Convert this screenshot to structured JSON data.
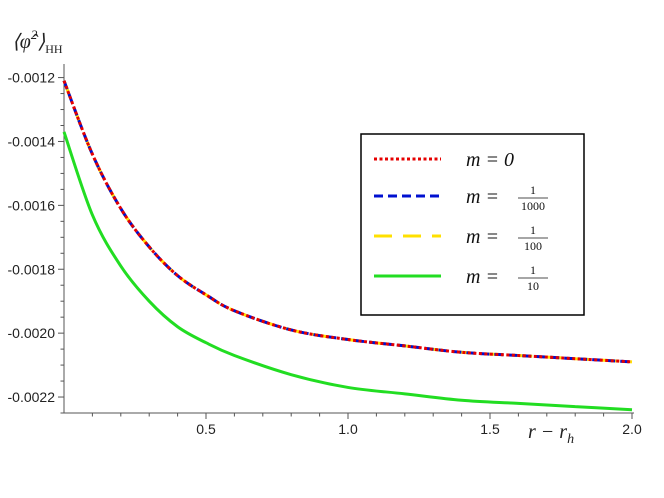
{
  "chart_data": {
    "type": "line",
    "ylabel_base": "⟨φ̂",
    "ylabel_sup": "2",
    "ylabel_close": "⟩",
    "ylabel_sub": "HH",
    "xlabel": "r − r",
    "xlabel_sub": "h",
    "xlim": [
      0,
      2.0
    ],
    "ylim": [
      -0.00225,
      -0.00117
    ],
    "x_ticks": [
      0.5,
      1.0,
      1.5,
      2.0
    ],
    "x_tick_labels": [
      "0.5",
      "1.0",
      "1.5",
      "2.0"
    ],
    "y_ticks": [
      -0.0012,
      -0.0014,
      -0.0016,
      -0.0018,
      -0.002,
      -0.0022
    ],
    "y_tick_labels": [
      "-0.0012",
      "-0.0014",
      "-0.0016",
      "-0.0018",
      "-0.0020",
      "-0.0022"
    ],
    "legend_position": "top-right",
    "series": [
      {
        "name": "m = 0",
        "label_type": "plain",
        "label_prefix": "m = ",
        "label_value": "0",
        "color": "#e60000",
        "style": "dotted",
        "x": [
          0,
          0.1,
          0.2,
          0.3,
          0.4,
          0.5,
          0.6,
          0.8,
          1.0,
          1.2,
          1.4,
          1.6,
          1.8,
          2.0
        ],
        "y": [
          -0.00121,
          -0.00144,
          -0.00161,
          -0.00173,
          -0.00182,
          -0.00188,
          -0.00193,
          -0.00199,
          -0.00202,
          -0.00204,
          -0.00206,
          -0.00207,
          -0.00208,
          -0.00209
        ]
      },
      {
        "name": "m = 1/1000",
        "label_type": "frac",
        "label_prefix": "m = ",
        "label_num": "1",
        "label_den": "1000",
        "color": "#0010d0",
        "style": "dashed",
        "x": [
          0,
          0.1,
          0.2,
          0.3,
          0.4,
          0.5,
          0.6,
          0.8,
          1.0,
          1.2,
          1.4,
          1.6,
          1.8,
          2.0
        ],
        "y": [
          -0.00121,
          -0.00144,
          -0.00161,
          -0.00173,
          -0.00182,
          -0.00188,
          -0.00193,
          -0.00199,
          -0.00202,
          -0.00204,
          -0.00206,
          -0.00207,
          -0.00208,
          -0.00209
        ]
      },
      {
        "name": "m = 1/100",
        "label_type": "frac",
        "label_prefix": "m = ",
        "label_num": "1",
        "label_den": "100",
        "color": "#ffe000",
        "style": "longdash",
        "x": [
          0,
          0.1,
          0.2,
          0.3,
          0.4,
          0.5,
          0.6,
          0.8,
          1.0,
          1.2,
          1.4,
          1.6,
          1.8,
          2.0
        ],
        "y": [
          -0.00121,
          -0.00144,
          -0.00161,
          -0.00173,
          -0.00182,
          -0.00188,
          -0.00193,
          -0.00199,
          -0.00202,
          -0.00204,
          -0.00206,
          -0.00207,
          -0.00208,
          -0.00209
        ]
      },
      {
        "name": "m = 1/10",
        "label_type": "frac",
        "label_prefix": "m = ",
        "label_num": "1",
        "label_den": "10",
        "color": "#22dd22",
        "style": "solid",
        "x": [
          0,
          0.1,
          0.2,
          0.3,
          0.4,
          0.5,
          0.6,
          0.8,
          1.0,
          1.2,
          1.4,
          1.6,
          1.8,
          2.0
        ],
        "y": [
          -0.00137,
          -0.00163,
          -0.00179,
          -0.0019,
          -0.00198,
          -0.00203,
          -0.00207,
          -0.00213,
          -0.00217,
          -0.00219,
          -0.00221,
          -0.00222,
          -0.00223,
          -0.00224
        ]
      }
    ]
  }
}
